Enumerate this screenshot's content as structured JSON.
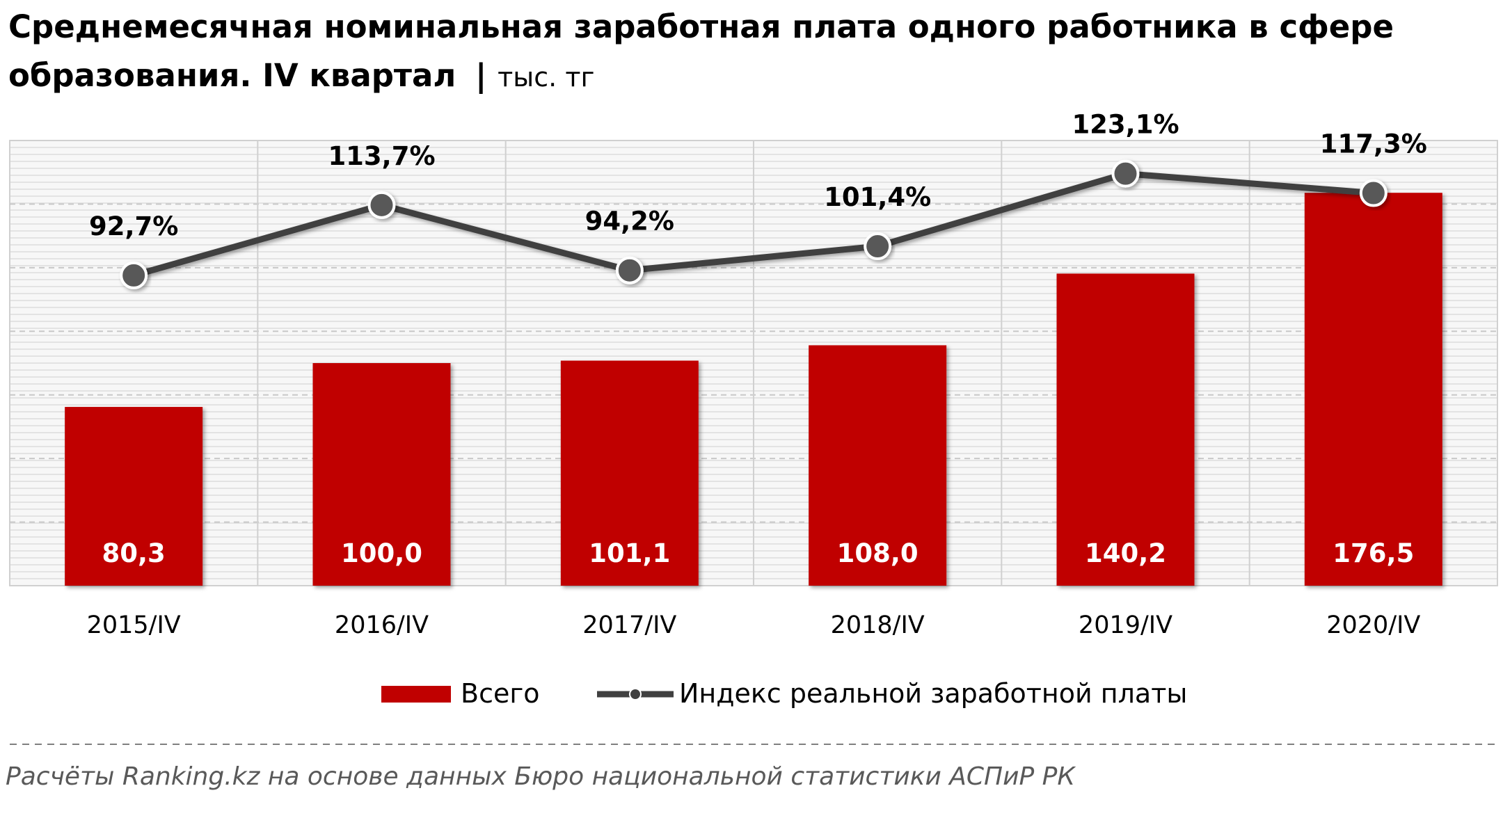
{
  "chart_data": {
    "type": "bar",
    "title": "Среднемесячная номинальная заработная плата одного работника в сфере образования. IV квартал",
    "unit_separator": "|",
    "unit": "тыс. тг",
    "categories": [
      "2015/IV",
      "2016/IV",
      "2017/IV",
      "2018/IV",
      "2019/IV",
      "2020/IV"
    ],
    "series": [
      {
        "name": "Всего",
        "type": "bar",
        "values": [
          80.3,
          100.0,
          101.1,
          108.0,
          140.2,
          176.5
        ],
        "labels": [
          "80,3",
          "100,0",
          "101,1",
          "108,0",
          "140,2",
          "176,5"
        ],
        "color": "#C00000"
      },
      {
        "name": "Индекс реальной заработной платы",
        "type": "line",
        "values": [
          92.7,
          113.7,
          94.2,
          101.4,
          123.1,
          117.3
        ],
        "labels": [
          "92,7%",
          "113,7%",
          "94,2%",
          "101,4%",
          "123,1%",
          "117,3%"
        ],
        "color": "#404040"
      }
    ],
    "ylim": [
      0,
      200
    ],
    "line_ylim": [
      0,
      133
    ],
    "grid": true,
    "legend_position": "bottom"
  },
  "source": "Расчёты Ranking.kz на основе данных Бюро национальной статистики АСПиР РК"
}
